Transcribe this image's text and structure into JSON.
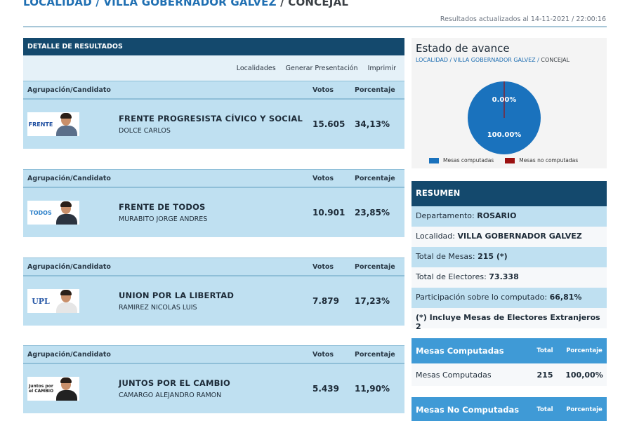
{
  "header": {
    "crumb1": "LOCALIDAD",
    "crumb2": "VILLA GOBERNADOR GALVEZ",
    "crumb3": "CONCEJAL",
    "sep": " / ",
    "updated": "Resultados actualizados al 14-11-2021 / 22:00:16"
  },
  "detalle": {
    "title": "DETALLE DE RESULTADOS",
    "tools": [
      "Localidades",
      "Generar Presentación",
      "Imprimir"
    ]
  },
  "columns": {
    "group": "Agrupación/Candidato",
    "votes": "Votos",
    "pct": "Porcentaje"
  },
  "parties": [
    {
      "party": "FRENTE PROGRESISTA CÍVICO Y SOCIAL",
      "candidate": "DOLCE CARLOS",
      "votes": "15.605",
      "pct": "34,13%",
      "logo_text": "FRENTE",
      "logo_color": "#1f4fa0",
      "shirt_color": "#5b6f8a"
    },
    {
      "party": "FRENTE DE TODOS",
      "candidate": "MURABITO JORGE ANDRES",
      "votes": "10.901",
      "pct": "23,85%",
      "logo_text": "TODOS",
      "logo_color": "#2a7fc9",
      "shirt_color": "#2c3440"
    },
    {
      "party": "UNION POR LA LIBERTAD",
      "candidate": "RAMIREZ NICOLAS LUIS",
      "votes": "7.879",
      "pct": "17,23%",
      "logo_text": "UPL",
      "logo_color": "#2a5aa8",
      "shirt_color": "#e6e6e6"
    },
    {
      "party": "JUNTOS POR EL CAMBIO",
      "candidate": "CAMARGO ALEJANDRO RAMON",
      "votes": "5.439",
      "pct": "11,90%",
      "logo_text": "Juntos por el CAMBIO",
      "logo_color": "#222222",
      "shirt_color": "#222222"
    }
  ],
  "avance": {
    "title": "Estado de avance",
    "crumb1": "LOCALIDAD",
    "crumb2": "VILLA GOBERNADOR GALVEZ",
    "crumb3": "CONCEJAL",
    "computed_label": "100.00%",
    "not_computed_label": "0.00%",
    "computed_fraction": 1.0,
    "legend_computed": "Mesas computadas",
    "legend_not_computed": "Mesas no computadas",
    "color_computed": "#1a72bd",
    "color_not_computed": "#9b1111"
  },
  "resumen": {
    "title": "RESUMEN",
    "dep_label": "Departamento: ",
    "dep_value": "ROSARIO",
    "loc_label": "Localidad: ",
    "loc_value": "VILLA GOBERNADOR GALVEZ",
    "mesas_label": "Total de Mesas: ",
    "mesas_value": "215 (*)",
    "elect_label": "Total de Electores: ",
    "elect_value": "73.338",
    "part_label": "Participación sobre lo computado: ",
    "part_value": "66,81%",
    "note": "(*) Incluye Mesas de Electores Extranjeros 2"
  },
  "mesas_computadas": {
    "title": "Mesas Computadas",
    "col_total": "Total",
    "col_pct": "Porcentaje",
    "row_label": "Mesas Computadas",
    "row_total": "215",
    "row_pct": "100,00%"
  },
  "mesas_no_computadas": {
    "title": "Mesas No Computadas",
    "col_total": "Total",
    "col_pct": "Porcentaje"
  }
}
